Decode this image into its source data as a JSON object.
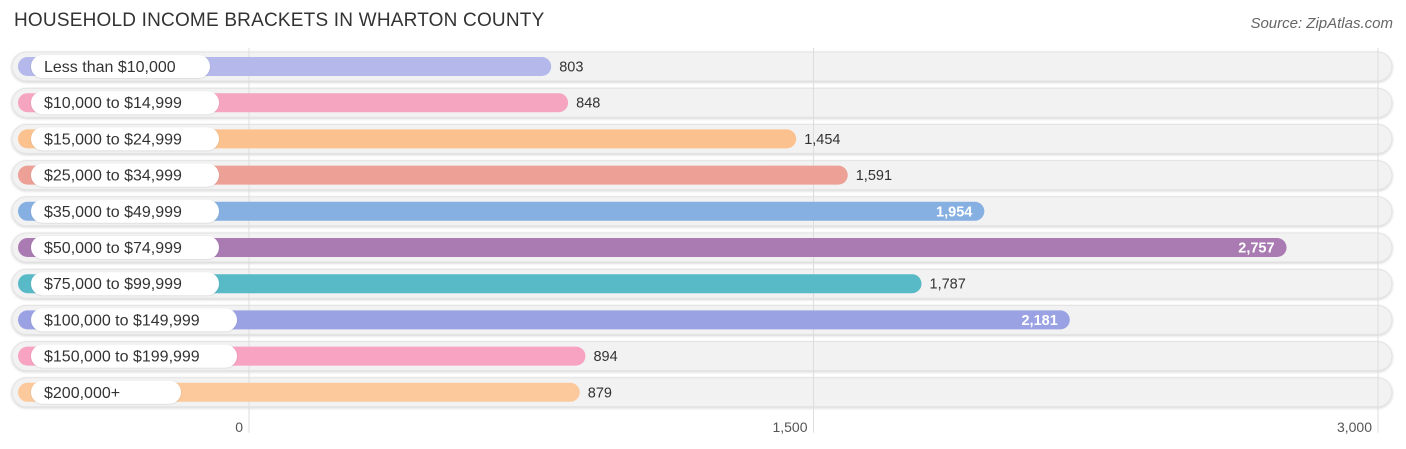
{
  "title": "HOUSEHOLD INCOME BRACKETS IN WHARTON COUNTY",
  "source": "Source: ZipAtlas.com",
  "chart_data": {
    "type": "bar",
    "orientation": "horizontal",
    "title": "HOUSEHOLD INCOME BRACKETS IN WHARTON COUNTY",
    "xlabel": "",
    "ylabel": "",
    "xlim": [
      0,
      3000
    ],
    "ticks": [
      {
        "value": 0,
        "label": "0"
      },
      {
        "value": 1500,
        "label": "1,500"
      },
      {
        "value": 3000,
        "label": "3,000"
      }
    ],
    "grid": true,
    "categories": [
      "Less than $10,000",
      "$10,000 to $14,999",
      "$15,000 to $24,999",
      "$25,000 to $34,999",
      "$35,000 to $49,999",
      "$50,000 to $74,999",
      "$75,000 to $99,999",
      "$100,000 to $149,999",
      "$150,000 to $199,999",
      "$200,000+"
    ],
    "values": [
      803,
      848,
      1454,
      1591,
      1954,
      2757,
      1787,
      2181,
      894,
      879
    ],
    "value_labels": [
      "803",
      "848",
      "1,454",
      "1,591",
      "1,954",
      "2,757",
      "1,787",
      "2,181",
      "894",
      "879"
    ],
    "colors": [
      "#b4b8ea",
      "#f5a5c0",
      "#fbc28f",
      "#eca096",
      "#86b0e2",
      "#a97bb2",
      "#58bac6",
      "#9aa2e4",
      "#f7a3c1",
      "#fbc99c"
    ]
  }
}
